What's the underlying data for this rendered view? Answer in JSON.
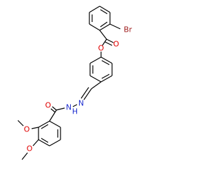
{
  "atoms": [
    "Br",
    "O",
    "O",
    "N",
    "N",
    "H",
    "O",
    "O",
    "O"
  ]
}
